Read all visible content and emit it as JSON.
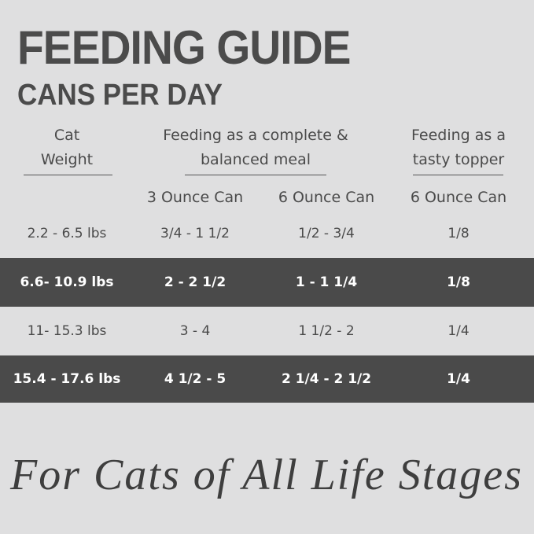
{
  "header": {
    "title": "FEEDING GUIDE",
    "subtitle": "CANS PER DAY"
  },
  "table": {
    "group_headers": [
      [
        "Cat",
        "Weight"
      ],
      [
        "Feeding as a complete &",
        "balanced meal"
      ],
      [
        "Feeding as a",
        "tasty topper"
      ]
    ],
    "column_headers": [
      "3 Ounce Can",
      "6 Ounce Can",
      "6 Ounce Can"
    ],
    "rows": [
      [
        "2.2 - 6.5 lbs",
        "3/4 - 1 1/2",
        "1/2 - 3/4",
        "1/8"
      ],
      [
        "6.6- 10.9 lbs",
        "2 - 2 1/2",
        "1 - 1 1/4",
        "1/8"
      ],
      [
        "11- 15.3 lbs",
        "3 - 4",
        "1 1/2 - 2",
        "1/4"
      ],
      [
        "15.4 - 17.6 lbs",
        "4 1/2 - 5",
        "2 1/4 - 2 1/2",
        "1/4"
      ]
    ]
  },
  "footer": {
    "tagline": "For Cats of All Life Stages"
  }
}
